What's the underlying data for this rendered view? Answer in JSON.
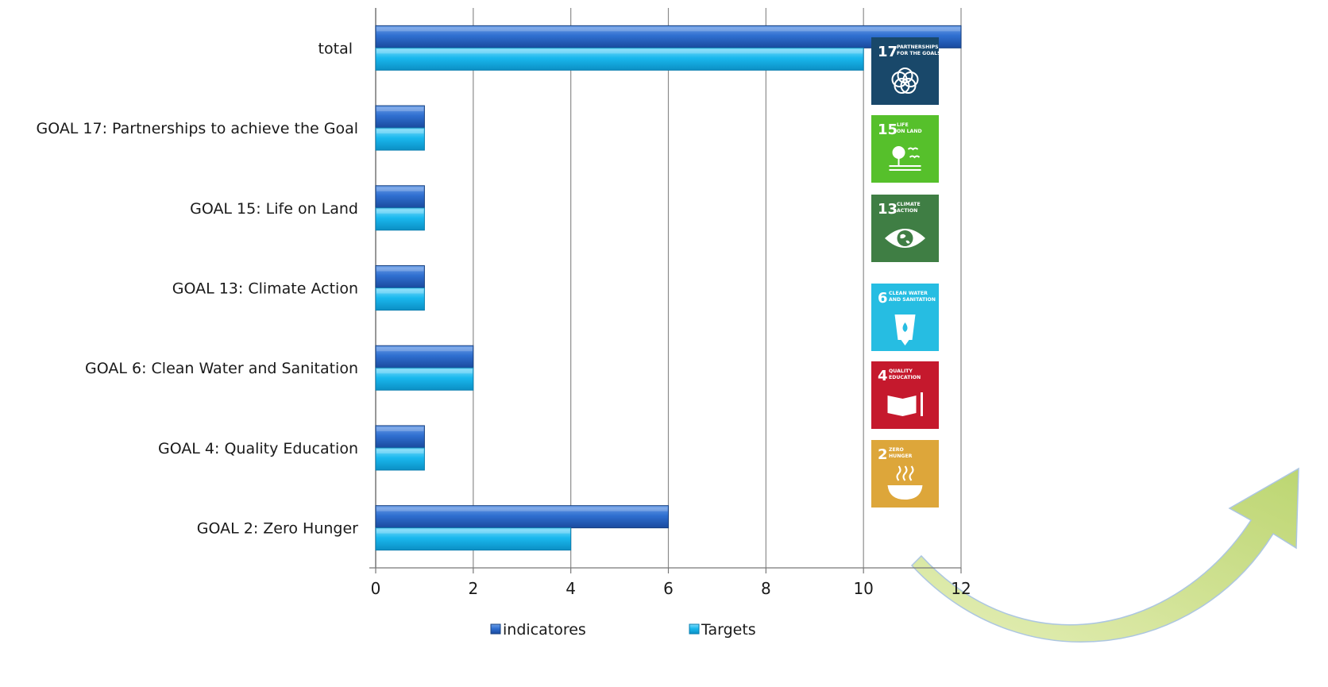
{
  "chart_data": {
    "type": "bar",
    "orientation": "horizontal",
    "categories": [
      "total",
      "GOAL 17: Partnerships to achieve the Goal",
      "GOAL 15: Life on Land",
      "GOAL 13: Climate Action",
      "GOAL 6: Clean Water and Sanitation",
      "GOAL 4: Quality Education",
      "GOAL 2: Zero Hunger"
    ],
    "series": [
      {
        "name": "indicatores",
        "values": [
          12,
          1,
          1,
          1,
          2,
          1,
          6
        ],
        "color": "#2f6fd0"
      },
      {
        "name": "Targets",
        "values": [
          10,
          1,
          1,
          1,
          2,
          1,
          4
        ],
        "color": "#1ab8ee"
      }
    ],
    "xlim": [
      0,
      12
    ],
    "xticks": [
      "0",
      "2",
      "4",
      "6",
      "8",
      "10",
      "12"
    ],
    "grid": true,
    "legend_position": "bottom"
  },
  "sdg_icons": [
    {
      "number": "17",
      "title": [
        "PARTNERSHIPS",
        "FOR THE GOALS"
      ],
      "color": "#19486a",
      "icon": "partnership-rings-icon"
    },
    {
      "number": "15",
      "title": [
        "LIFE",
        "ON LAND"
      ],
      "color": "#56c02b",
      "icon": "tree-birds-icon"
    },
    {
      "number": "13",
      "title": [
        "CLIMATE",
        "ACTION"
      ],
      "color": "#3f7e44",
      "icon": "globe-eye-icon"
    },
    {
      "number": "6",
      "title": [
        "CLEAN WATER",
        "AND SANITATION"
      ],
      "color": "#26bde2",
      "icon": "water-glass-icon"
    },
    {
      "number": "4",
      "title": [
        "QUALITY",
        "EDUCATION"
      ],
      "color": "#c5192d",
      "icon": "book-pencil-icon"
    },
    {
      "number": "2",
      "title": [
        "ZERO",
        "HUNGER"
      ],
      "color": "#dda63a",
      "icon": "steaming-bowl-icon"
    }
  ],
  "decor": {
    "arrow_color": "#c6dc7a",
    "icon": "curved-arrow-icon"
  }
}
